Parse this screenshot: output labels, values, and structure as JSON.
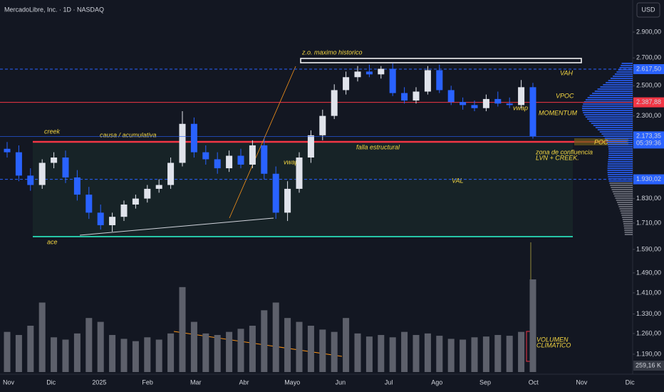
{
  "header": {
    "title": "MercadoLibre, Inc. · 1D · NASDAQ",
    "currency": "USD"
  },
  "annotations": {
    "ath_zone": "z.o. maximo historico",
    "creek": "creek",
    "cause": "causa / acumulativa",
    "fault": "falla estructural",
    "vwap_main": "vwap",
    "vwap_small": "vwap",
    "ace": "ace",
    "vah": "VAH",
    "vpoc": "VPOC",
    "val": "VAL",
    "poc": "POC",
    "momentum": "MOMENTUM",
    "confluence_1": "zona de confluencia",
    "confluence_2": "LVN + CREEK.",
    "climax_1": "VOLUMEN",
    "climax_2": "CLIMATICO"
  },
  "chart_data": {
    "type": "candlestick",
    "log_scale": true,
    "ylim": [
      1126,
      3169
    ],
    "yticks": [
      {
        "value": 2900,
        "label": "2.900,00"
      },
      {
        "value": 2700,
        "label": "2.700,00"
      },
      {
        "value": 2500,
        "label": "2.500,00"
      },
      {
        "value": 2300,
        "label": "2.300,00"
      },
      {
        "value": 1830,
        "label": "1.830,00"
      },
      {
        "value": 1710,
        "label": "1.710,00"
      },
      {
        "value": 1590,
        "label": "1.590,00"
      },
      {
        "value": 1490,
        "label": "1.490,00"
      },
      {
        "value": 1410,
        "label": "1.410,00"
      },
      {
        "value": 1330,
        "label": "1.330,00"
      },
      {
        "value": 1260,
        "label": "1.260,00"
      },
      {
        "value": 1190,
        "label": "1.190,00"
      }
    ],
    "time_labels": [
      "Nov",
      "Dic",
      "2025",
      "Feb",
      "Mar",
      "Abr",
      "Mayo",
      "Jun",
      "Jul",
      "Ago",
      "Sep",
      "Oct",
      "Nov",
      "Dic"
    ],
    "up_color": "#e0e3eb",
    "down_color": "#2962ff",
    "open": [
      2100,
      2080,
      1950,
      1900,
      2020,
      2050,
      1940,
      1850,
      1760,
      1700,
      1740,
      1800,
      1830,
      1880,
      1900,
      2020,
      2250,
      2080,
      2040,
      1990,
      2060,
      2010,
      2120,
      1960,
      1760,
      1880,
      2050,
      2180,
      2300,
      2470,
      2560,
      2600,
      2580,
      2620,
      2450,
      2400,
      2460,
      2610,
      2470,
      2390,
      2370,
      2350,
      2410,
      2380,
      2370,
      2490
    ],
    "high": [
      2140,
      2120,
      1990,
      2040,
      2080,
      2090,
      1980,
      1890,
      1800,
      1760,
      1820,
      1850,
      1900,
      1930,
      2050,
      2330,
      2290,
      2120,
      2080,
      2090,
      2100,
      2150,
      2160,
      2000,
      1920,
      2080,
      2210,
      2340,
      2510,
      2600,
      2640,
      2650,
      2640,
      2660,
      2490,
      2490,
      2640,
      2650,
      2500,
      2420,
      2400,
      2440,
      2460,
      2420,
      2540,
      2520
    ],
    "low": [
      2050,
      1920,
      1870,
      1880,
      1990,
      1910,
      1820,
      1730,
      1680,
      1670,
      1720,
      1780,
      1810,
      1860,
      1880,
      2000,
      2050,
      2010,
      1960,
      1970,
      1990,
      1990,
      1930,
      1730,
      1720,
      1860,
      2020,
      2150,
      2280,
      2440,
      2530,
      2560,
      2550,
      2430,
      2380,
      2380,
      2440,
      2450,
      2370,
      2340,
      2330,
      2330,
      2360,
      2350,
      2350,
      2160
    ],
    "close": [
      2080,
      1950,
      1900,
      2020,
      2050,
      1940,
      1850,
      1760,
      1700,
      1740,
      1800,
      1830,
      1880,
      1900,
      2020,
      2250,
      2080,
      2040,
      1990,
      2060,
      2010,
      2120,
      1960,
      1760,
      1880,
      2050,
      2180,
      2300,
      2470,
      2560,
      2600,
      2580,
      2620,
      2450,
      2400,
      2460,
      2610,
      2470,
      2390,
      2370,
      2350,
      2410,
      2380,
      2370,
      2490,
      2173.35
    ],
    "volume": [
      520,
      480,
      600,
      900,
      450,
      420,
      500,
      700,
      650,
      480,
      430,
      400,
      450,
      420,
      500,
      1100,
      650,
      500,
      480,
      520,
      560,
      600,
      800,
      900,
      700,
      650,
      600,
      550,
      520,
      700,
      500,
      460,
      480,
      450,
      520,
      480,
      500,
      470,
      430,
      420,
      450,
      460,
      480,
      470,
      520,
      1200
    ],
    "volume_color": "#5d606b",
    "volume_label": "259,16 K",
    "levels": [
      {
        "value": 2617.5,
        "label": "2.617,50",
        "color": "#2962ff",
        "style": "dashed"
      },
      {
        "value": 2387.88,
        "label": "2.387,88",
        "color": "#f23645",
        "style": "solid"
      },
      {
        "value": 1930.02,
        "label": "1.930,02",
        "color": "#2962ff",
        "style": "dashed"
      }
    ],
    "last_price": {
      "value": 2173.35,
      "label": "2.173,35",
      "countdown": "05:39:36",
      "color": "#2962ff"
    }
  }
}
